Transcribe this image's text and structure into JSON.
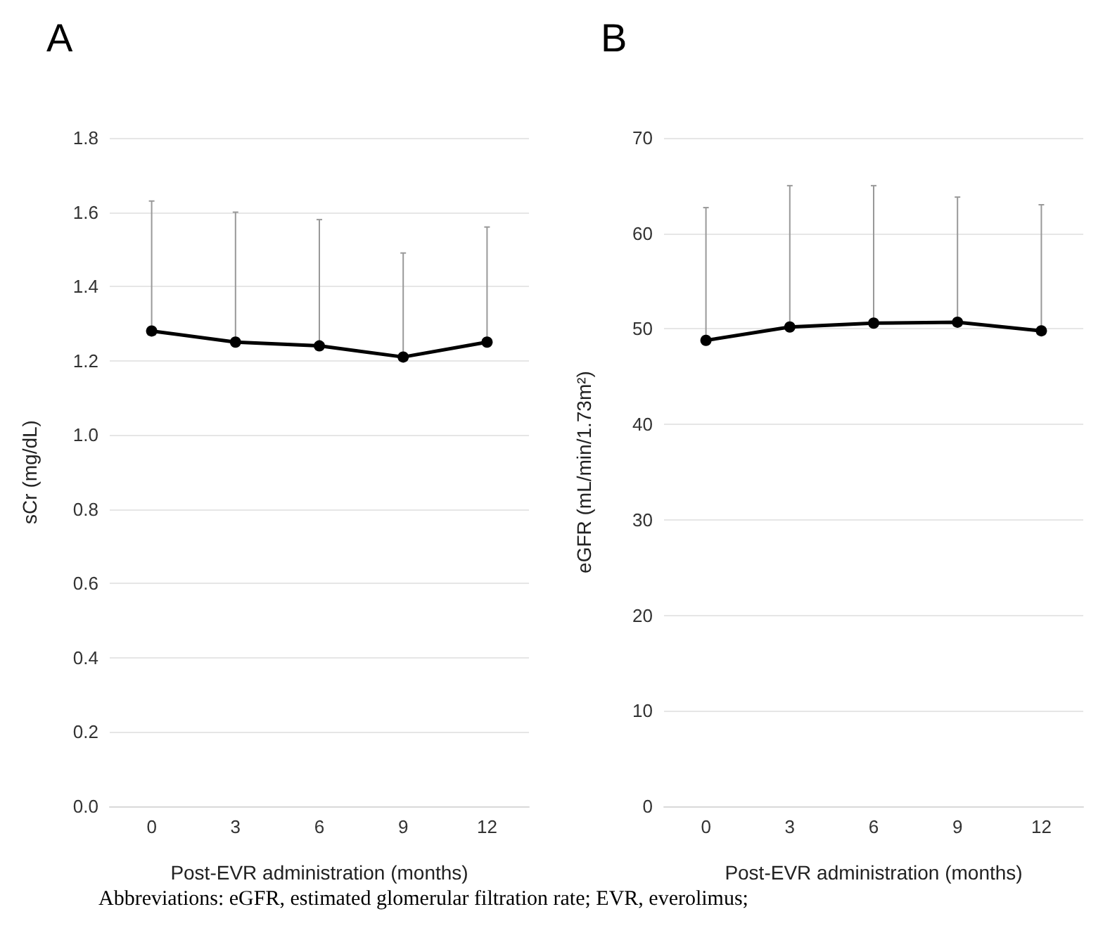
{
  "chart_data": [
    {
      "type": "line",
      "title": "A",
      "xlabel": "Post-EVR administration (months)",
      "ylabel": "sCr (mg/dL)",
      "categories": [
        "0",
        "3",
        "6",
        "9",
        "12"
      ],
      "series": [
        {
          "color": "#000000",
          "values": [
            1.28,
            1.25,
            1.24,
            1.21,
            1.25
          ],
          "errors": [
            [
              1.28,
              1.63
            ],
            [
              1.25,
              1.6
            ],
            [
              1.24,
              1.58
            ],
            [
              1.21,
              1.49
            ],
            [
              1.25,
              1.56
            ]
          ]
        }
      ],
      "ylim": [
        0,
        1.8
      ],
      "yticks": [
        {
          "value": 0,
          "label": "0.0"
        },
        0.2,
        0.4,
        0.6,
        0.8,
        {
          "value": 1,
          "label": "1.0"
        },
        1.2,
        1.4,
        1.6,
        1.8
      ],
      "grid": "y",
      "marker": "circle",
      "line_style": "solid"
    },
    {
      "type": "line",
      "title": "B",
      "xlabel": "Post-EVR administration (months)",
      "ylabel": "eGFR (mL/min/1.73m²)",
      "categories": [
        "0",
        "3",
        "6",
        "9",
        "12"
      ],
      "series": [
        {
          "color": "#000000",
          "values": [
            48.8,
            50.2,
            50.6,
            50.7,
            49.8
          ],
          "errors": [
            [
              48.8,
              62.7
            ],
            [
              50.2,
              65.0
            ],
            [
              50.6,
              65.0
            ],
            [
              50.7,
              63.8
            ],
            [
              49.8,
              63.0
            ]
          ]
        }
      ],
      "ylim": [
        0,
        70
      ],
      "yticks": [
        0,
        10,
        20,
        30,
        40,
        50,
        60,
        70
      ],
      "grid": "y",
      "marker": "circle",
      "line_style": "solid",
      "annotations": [
        "Abbreviations: eGFR, estimated glomerular filtration rate; EVR, everolimus;"
      ]
    }
  ]
}
